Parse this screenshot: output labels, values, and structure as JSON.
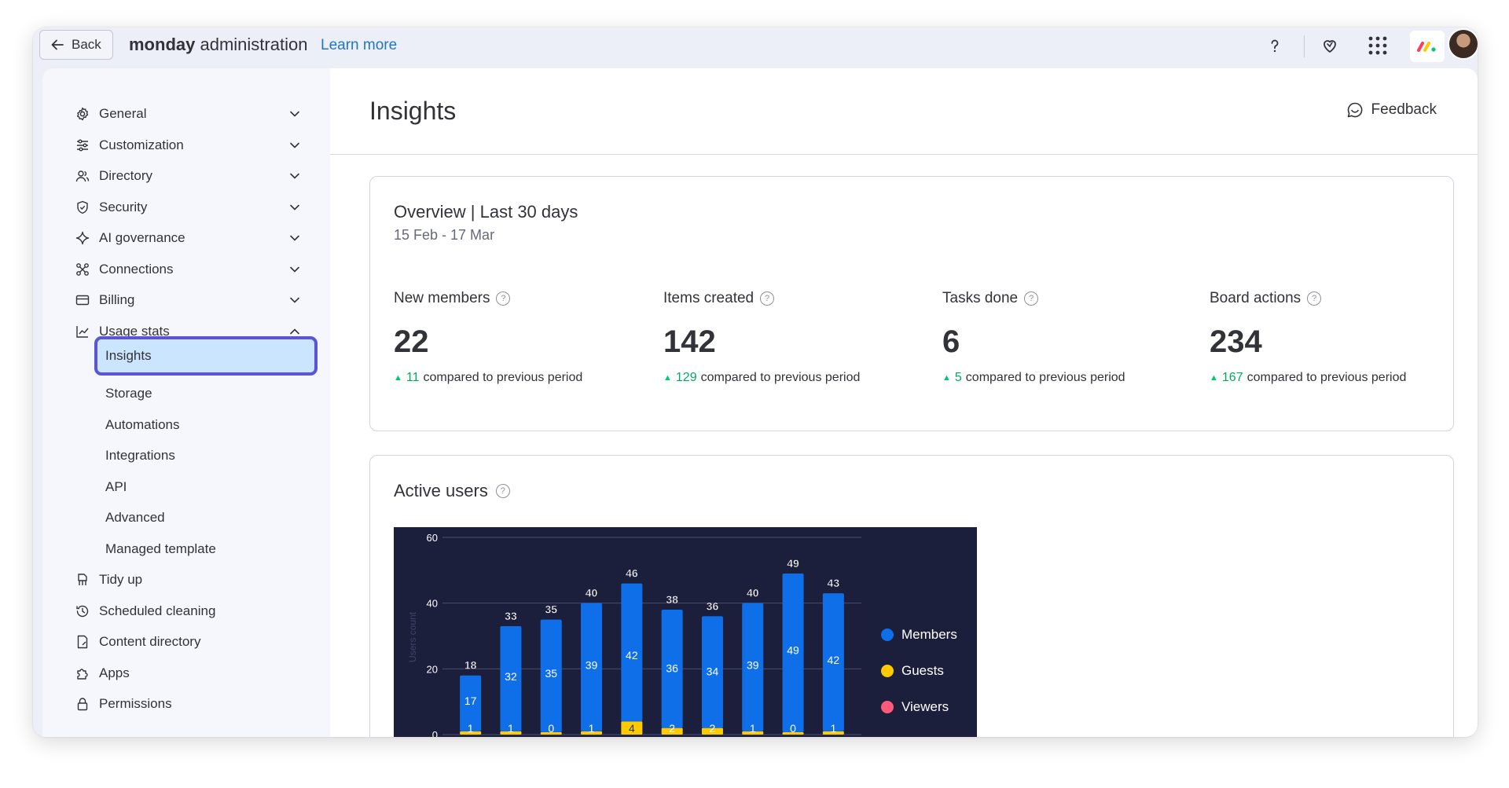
{
  "topbar": {
    "back_label": "Back",
    "brand_bold": "monday",
    "brand_rest": "administration",
    "learn_more": "Learn more",
    "icons": [
      "help-icon",
      "heart-icon",
      "apps-grid-icon",
      "monday-logo-icon",
      "user-avatar"
    ]
  },
  "sidebar": {
    "items": [
      {
        "label": "General",
        "icon": "gear-icon",
        "expanded": false
      },
      {
        "label": "Customization",
        "icon": "sliders-icon",
        "expanded": false
      },
      {
        "label": "Directory",
        "icon": "users-icon",
        "expanded": false
      },
      {
        "label": "Security",
        "icon": "shield-icon",
        "expanded": false
      },
      {
        "label": "AI governance",
        "icon": "sparkle-icon",
        "expanded": false
      },
      {
        "label": "Connections",
        "icon": "connections-icon",
        "expanded": false
      },
      {
        "label": "Billing",
        "icon": "card-icon",
        "expanded": false
      },
      {
        "label": "Usage stats",
        "icon": "chart-line-icon",
        "expanded": true
      }
    ],
    "sub_items": [
      {
        "label": "Insights",
        "active": true
      },
      {
        "label": "Storage",
        "active": false
      },
      {
        "label": "Automations",
        "active": false
      },
      {
        "label": "Integrations",
        "active": false
      },
      {
        "label": "API",
        "active": false
      },
      {
        "label": "Advanced",
        "active": false
      },
      {
        "label": "Managed template",
        "active": false
      }
    ],
    "bottom_items": [
      {
        "label": "Tidy up",
        "icon": "broom-icon"
      },
      {
        "label": "Scheduled cleaning",
        "icon": "history-icon"
      },
      {
        "label": "Content directory",
        "icon": "document-icon"
      },
      {
        "label": "Apps",
        "icon": "puzzle-icon"
      },
      {
        "label": "Permissions",
        "icon": "lock-icon"
      }
    ]
  },
  "main": {
    "title": "Insights",
    "feedback_label": "Feedback",
    "overview": {
      "title": "Overview | Last 30 days",
      "date_range": "15 Feb - 17 Mar",
      "compare_text": "compared to previous period",
      "stats": [
        {
          "label": "New members",
          "value": "22",
          "delta": "11"
        },
        {
          "label": "Items created",
          "value": "142",
          "delta": "129"
        },
        {
          "label": "Tasks done",
          "value": "6",
          "delta": "5"
        },
        {
          "label": "Board actions",
          "value": "234",
          "delta": "167"
        }
      ]
    },
    "active_users": {
      "title": "Active users"
    }
  },
  "colors": {
    "members": "#0f6fe8",
    "guests": "#ffcb00",
    "viewers": "#ff5a7a",
    "chart_bg": "#1c1f3b",
    "active_border": "#5b55d6",
    "active_bg": "#cce5ff",
    "positive": "#00c875"
  },
  "chart_data": {
    "type": "bar",
    "stacked": true,
    "ylabel": "Users count",
    "ylim": [
      0,
      60
    ],
    "yticks": [
      0,
      20,
      40,
      60
    ],
    "legend_position": "right",
    "grid": true,
    "totals": [
      18,
      33,
      35,
      40,
      46,
      38,
      36,
      40,
      49,
      43
    ],
    "series": [
      {
        "name": "Members",
        "values": [
          17,
          32,
          35,
          39,
          42,
          36,
          34,
          39,
          49,
          42
        ]
      },
      {
        "name": "Guests",
        "values": [
          1,
          1,
          0,
          1,
          4,
          2,
          2,
          1,
          0,
          1
        ]
      },
      {
        "name": "Viewers",
        "values": [
          0,
          0,
          0,
          0,
          0,
          0,
          0,
          0,
          0,
          0
        ]
      }
    ]
  }
}
